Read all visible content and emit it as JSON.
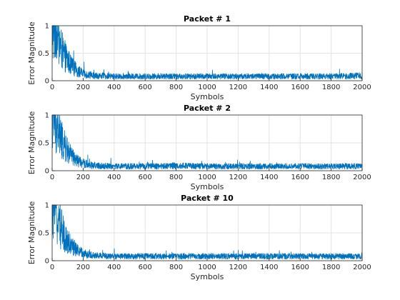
{
  "chart_data": [
    {
      "type": "line",
      "title": "Packet # 1",
      "xlabel": "Symbols",
      "ylabel": "Error Magnitude",
      "xlim": [
        0,
        2000
      ],
      "ylim": [
        0,
        1
      ],
      "xticks": [
        0,
        200,
        400,
        600,
        800,
        1000,
        1200,
        1400,
        1600,
        1800,
        2000
      ],
      "yticks": [
        0,
        0.5,
        1
      ],
      "xtick_labels": [
        "0",
        "200",
        "400",
        "600",
        "800",
        "1000",
        "1200",
        "1400",
        "1600",
        "1800",
        "2000"
      ],
      "ytick_labels": [
        "0",
        "0.5",
        "1"
      ],
      "grid": true,
      "color": "#0072bd",
      "series": [
        {
          "x": [
            0,
            25,
            50,
            75,
            100,
            125,
            150,
            175,
            200,
            250,
            300,
            400,
            500,
            600,
            800,
            1000,
            1200,
            1400,
            1600,
            1800,
            2000
          ],
          "values": [
            1.0,
            0.82,
            0.64,
            0.48,
            0.37,
            0.27,
            0.21,
            0.16,
            0.13,
            0.1,
            0.09,
            0.08,
            0.08,
            0.08,
            0.08,
            0.08,
            0.08,
            0.08,
            0.08,
            0.08,
            0.09
          ]
        }
      ]
    },
    {
      "type": "line",
      "title": "Packet # 2",
      "xlabel": "Symbols",
      "ylabel": "Error Magnitude",
      "xlim": [
        0,
        2000
      ],
      "ylim": [
        0,
        1
      ],
      "xticks": [
        0,
        200,
        400,
        600,
        800,
        1000,
        1200,
        1400,
        1600,
        1800,
        2000
      ],
      "yticks": [
        0,
        0.5,
        1
      ],
      "xtick_labels": [
        "0",
        "200",
        "400",
        "600",
        "800",
        "1000",
        "1200",
        "1400",
        "1600",
        "1800",
        "2000"
      ],
      "ytick_labels": [
        "0",
        "0.5",
        "1"
      ],
      "grid": true,
      "color": "#0072bd",
      "series": [
        {
          "x": [
            0,
            25,
            50,
            75,
            100,
            125,
            150,
            175,
            200,
            250,
            300,
            400,
            500,
            600,
            800,
            1000,
            1200,
            1400,
            1600,
            1800,
            2000
          ],
          "values": [
            1.0,
            0.8,
            0.62,
            0.46,
            0.35,
            0.26,
            0.2,
            0.16,
            0.13,
            0.1,
            0.09,
            0.08,
            0.08,
            0.08,
            0.09,
            0.08,
            0.08,
            0.08,
            0.08,
            0.08,
            0.08
          ]
        }
      ]
    },
    {
      "type": "line",
      "title": "Packet # 10",
      "xlabel": "Symbols",
      "ylabel": "Error Magnitude",
      "xlim": [
        0,
        2000
      ],
      "ylim": [
        0,
        1
      ],
      "xticks": [
        0,
        200,
        400,
        600,
        800,
        1000,
        1200,
        1400,
        1600,
        1800,
        2000
      ],
      "yticks": [
        0,
        0.5,
        1
      ],
      "xtick_labels": [
        "0",
        "200",
        "400",
        "600",
        "800",
        "1000",
        "1200",
        "1400",
        "1600",
        "1800",
        "2000"
      ],
      "ytick_labels": [
        "0",
        "0.5",
        "1"
      ],
      "grid": true,
      "color": "#0072bd",
      "series": [
        {
          "x": [
            0,
            25,
            50,
            75,
            100,
            125,
            150,
            175,
            200,
            250,
            300,
            400,
            500,
            600,
            800,
            1000,
            1200,
            1400,
            1600,
            1800,
            2000
          ],
          "values": [
            1.0,
            0.81,
            0.63,
            0.47,
            0.36,
            0.27,
            0.21,
            0.16,
            0.13,
            0.1,
            0.09,
            0.08,
            0.08,
            0.08,
            0.08,
            0.08,
            0.08,
            0.08,
            0.08,
            0.08,
            0.08
          ]
        }
      ]
    }
  ]
}
